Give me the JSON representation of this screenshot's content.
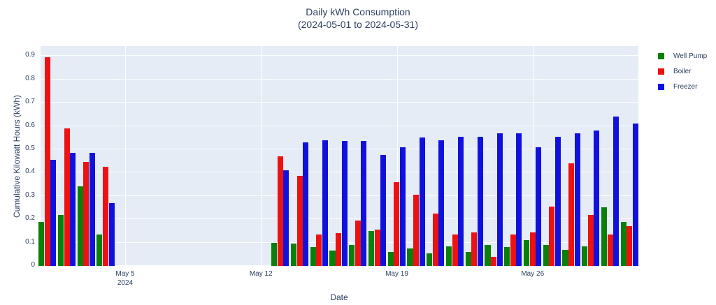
{
  "title": {
    "line1": "Daily kWh Consumption",
    "line2": "(2024-05-01 to 2024-05-31)"
  },
  "y_axis": {
    "label": "Cumulative Kilowatt Hours (kWh)",
    "tick_labels": [
      "0",
      "0.1",
      "0.2",
      "0.3",
      "0.4",
      "0.5",
      "0.6",
      "0.7",
      "0.8",
      "0.9"
    ]
  },
  "x_axis": {
    "label": "Date",
    "ticks": [
      {
        "day": 5,
        "line1": "May 5",
        "line2": "2024"
      },
      {
        "day": 12,
        "line1": "May 12",
        "line2": ""
      },
      {
        "day": 19,
        "line1": "May 19",
        "line2": ""
      },
      {
        "day": 26,
        "line1": "May 26",
        "line2": ""
      }
    ]
  },
  "legend": {
    "items": [
      {
        "label": "Well Pump",
        "color": "#0a800a"
      },
      {
        "label": "Boiler",
        "color": "#ee1111"
      },
      {
        "label": "Freezer",
        "color": "#1111dd"
      }
    ]
  },
  "colors": {
    "plot_background": "#e5ecf6",
    "gridline": "#ffffff",
    "text": "#2a3f5f",
    "well_pump": "#0a800a",
    "boiler": "#ee1111",
    "freezer": "#1111dd"
  },
  "chart_data": {
    "type": "bar",
    "title": "Daily kWh Consumption (2024-05-01 to 2024-05-31)",
    "xlabel": "Date",
    "ylabel": "Cumulative Kilowatt Hours (kWh)",
    "ylim": [
      0,
      0.943
    ],
    "grid": true,
    "legend_position": "right",
    "x_unit": "day of May 2024",
    "note": "Days 5-12 of May 2024 have no bars (missing data)",
    "days": [
      1,
      2,
      3,
      4,
      13,
      14,
      15,
      16,
      17,
      18,
      19,
      20,
      21,
      22,
      23,
      24,
      25,
      26,
      27,
      28,
      29,
      30,
      31
    ],
    "series": [
      {
        "name": "Well Pump",
        "color": "#0a800a",
        "values": [
          0.19,
          0.22,
          0.34,
          0.135,
          0.1,
          0.095,
          0.08,
          0.065,
          0.09,
          0.15,
          0.06,
          0.075,
          0.055,
          0.085,
          0.06,
          0.09,
          0.08,
          0.11,
          0.09,
          0.07,
          0.085,
          0.25,
          0.19
        ]
      },
      {
        "name": "Boiler",
        "color": "#ee1111",
        "values": [
          0.895,
          0.59,
          0.445,
          0.425,
          0.47,
          0.385,
          0.135,
          0.14,
          0.195,
          0.155,
          0.36,
          0.305,
          0.225,
          0.135,
          0.145,
          0.04,
          0.135,
          0.145,
          0.255,
          0.44,
          0.22,
          0.135,
          0.17
        ]
      },
      {
        "name": "Freezer",
        "color": "#1111dd",
        "values": [
          0.455,
          0.485,
          0.485,
          0.27,
          0.41,
          0.53,
          0.54,
          0.535,
          0.535,
          0.475,
          0.51,
          0.55,
          0.54,
          0.555,
          0.555,
          0.57,
          0.57,
          0.51,
          0.555,
          0.57,
          0.58,
          0.64,
          0.61
        ]
      }
    ]
  }
}
